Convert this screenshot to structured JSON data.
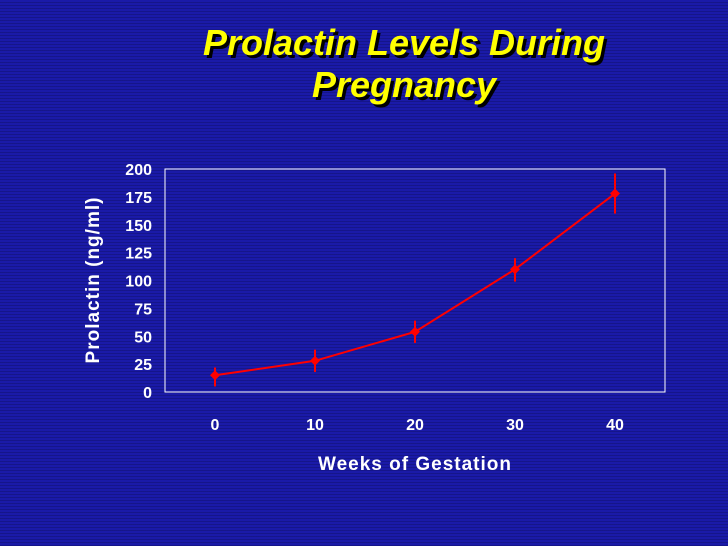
{
  "slide": {
    "title_line1": "Prolactin Levels During",
    "title_line2": "Pregnancy"
  },
  "colors": {
    "background": "#1a1aa8",
    "title": "#ffff00",
    "series": "#ff0000",
    "text": "#ffffff"
  },
  "chart_data": {
    "type": "line",
    "title": "Prolactin Levels During Pregnancy",
    "xlabel": "Weeks of Gestation",
    "ylabel": "Prolactin (ng/ml)",
    "x": [
      0,
      10,
      20,
      30,
      40
    ],
    "x_ticks": [
      "0",
      "10",
      "20",
      "30",
      "40"
    ],
    "y_ticks": [
      "0",
      "25",
      "50",
      "75",
      "100",
      "125",
      "150",
      "175",
      "200"
    ],
    "ylim": [
      0,
      200
    ],
    "xlim": [
      -5,
      45
    ],
    "grid": false,
    "legend": "none",
    "series": [
      {
        "values": [
          15,
          28,
          54,
          110,
          178
        ],
        "error_low": [
          5,
          18,
          44,
          99,
          160
        ],
        "error_high": [
          22,
          38,
          64,
          120,
          196
        ],
        "color": "#ff0000"
      }
    ]
  }
}
